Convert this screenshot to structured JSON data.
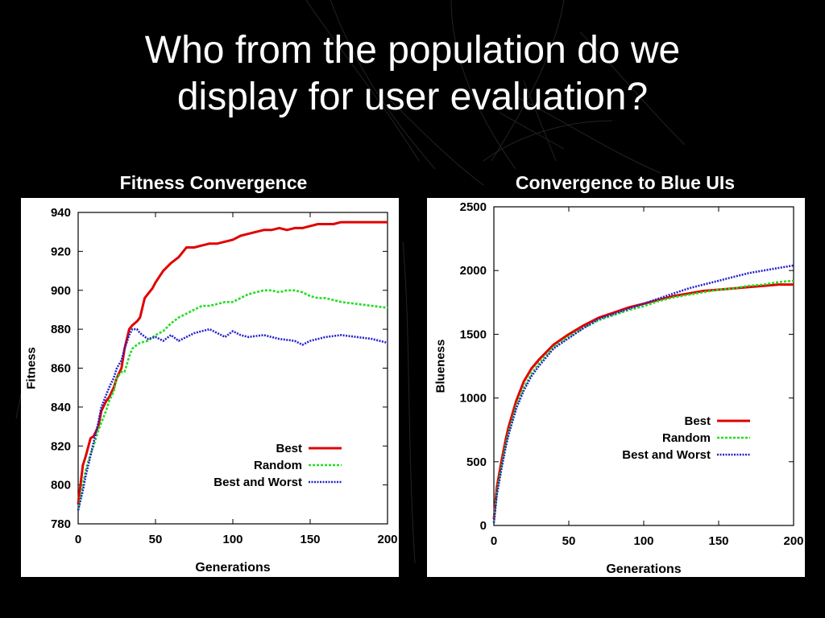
{
  "slide": {
    "title_line1": "Who from the population do we",
    "title_line2": "display for user evaluation?"
  },
  "colors": {
    "background": "#000000",
    "best": "#e00000",
    "random": "#22dd22",
    "best_and_worst": "#2222cc"
  },
  "chart_data": [
    {
      "type": "line",
      "heading": "Fitness Convergence",
      "xlabel": "Generations",
      "ylabel": "Fitness",
      "xlim": [
        0,
        200
      ],
      "ylim": [
        780,
        940
      ],
      "xticks": [
        0,
        50,
        100,
        150,
        200
      ],
      "yticks": [
        780,
        800,
        820,
        840,
        860,
        880,
        900,
        920,
        940
      ],
      "grid": false,
      "legend_position": "bottom-right",
      "series": [
        {
          "name": "Best",
          "style": "solid",
          "color": "#e00000",
          "x": [
            0,
            3,
            5,
            8,
            10,
            13,
            15,
            18,
            20,
            23,
            25,
            28,
            30,
            33,
            35,
            38,
            40,
            43,
            45,
            48,
            50,
            55,
            60,
            65,
            70,
            75,
            80,
            85,
            90,
            95,
            100,
            105,
            110,
            115,
            120,
            125,
            130,
            135,
            140,
            145,
            150,
            155,
            160,
            165,
            170,
            180,
            190,
            200
          ],
          "y": [
            790,
            810,
            815,
            824,
            825,
            830,
            838,
            843,
            845,
            850,
            855,
            860,
            870,
            880,
            882,
            884,
            886,
            896,
            898,
            901,
            904,
            910,
            914,
            917,
            922,
            922,
            923,
            924,
            924,
            925,
            926,
            928,
            929,
            930,
            931,
            931,
            932,
            931,
            932,
            932,
            933,
            934,
            934,
            934,
            935,
            935,
            935,
            935
          ]
        },
        {
          "name": "Random",
          "style": "dashed",
          "color": "#22dd22",
          "x": [
            0,
            3,
            5,
            8,
            10,
            13,
            15,
            18,
            20,
            23,
            25,
            28,
            30,
            33,
            35,
            38,
            40,
            45,
            50,
            55,
            60,
            65,
            70,
            75,
            80,
            85,
            90,
            95,
            100,
            105,
            110,
            115,
            120,
            125,
            130,
            135,
            140,
            145,
            150,
            155,
            160,
            170,
            180,
            190,
            200
          ],
          "y": [
            787,
            800,
            808,
            816,
            820,
            828,
            832,
            838,
            843,
            848,
            855,
            858,
            858,
            866,
            870,
            872,
            873,
            874,
            877,
            879,
            883,
            886,
            888,
            890,
            892,
            892,
            893,
            894,
            894,
            896,
            898,
            899,
            900,
            900,
            899,
            900,
            900,
            899,
            897,
            896,
            896,
            894,
            893,
            892,
            891
          ]
        },
        {
          "name": "Best and Worst",
          "style": "dotted",
          "color": "#2222cc",
          "x": [
            0,
            3,
            5,
            8,
            10,
            13,
            15,
            18,
            20,
            23,
            25,
            28,
            30,
            33,
            35,
            38,
            40,
            45,
            50,
            55,
            60,
            65,
            70,
            75,
            80,
            85,
            90,
            95,
            100,
            105,
            110,
            120,
            130,
            140,
            145,
            150,
            155,
            160,
            170,
            180,
            190,
            200
          ],
          "y": [
            787,
            797,
            805,
            815,
            822,
            832,
            840,
            846,
            850,
            855,
            860,
            864,
            870,
            877,
            880,
            880,
            878,
            875,
            876,
            874,
            877,
            874,
            876,
            878,
            879,
            880,
            878,
            876,
            879,
            877,
            876,
            877,
            875,
            874,
            872,
            874,
            875,
            876,
            877,
            876,
            875,
            873
          ]
        }
      ]
    },
    {
      "type": "line",
      "heading": "Convergence to Blue UIs",
      "xlabel": "Generations",
      "ylabel": "Blueness",
      "xlim": [
        0,
        200
      ],
      "ylim": [
        0,
        2500
      ],
      "xticks": [
        0,
        50,
        100,
        150,
        200
      ],
      "yticks": [
        0,
        500,
        1000,
        1500,
        2000,
        2500
      ],
      "grid": false,
      "legend_position": "middle-right",
      "series": [
        {
          "name": "Best",
          "style": "solid",
          "color": "#e00000",
          "x": [
            0,
            2,
            5,
            8,
            10,
            15,
            20,
            25,
            30,
            40,
            50,
            60,
            70,
            80,
            90,
            100,
            110,
            120,
            130,
            140,
            150,
            160,
            170,
            180,
            190,
            200
          ],
          "y": [
            50,
            300,
            500,
            680,
            780,
            980,
            1130,
            1230,
            1300,
            1420,
            1500,
            1570,
            1630,
            1670,
            1710,
            1740,
            1770,
            1800,
            1820,
            1840,
            1850,
            1860,
            1870,
            1880,
            1890,
            1890
          ]
        },
        {
          "name": "Random",
          "style": "dashed",
          "color": "#22dd22",
          "x": [
            0,
            2,
            5,
            8,
            10,
            15,
            20,
            25,
            30,
            40,
            50,
            60,
            70,
            80,
            90,
            100,
            110,
            120,
            130,
            140,
            150,
            160,
            170,
            180,
            190,
            200
          ],
          "y": [
            30,
            260,
            460,
            640,
            740,
            940,
            1080,
            1190,
            1270,
            1400,
            1480,
            1550,
            1610,
            1650,
            1690,
            1720,
            1760,
            1790,
            1810,
            1830,
            1850,
            1860,
            1880,
            1890,
            1910,
            1920
          ]
        },
        {
          "name": "Best and Worst",
          "style": "dotted",
          "color": "#2222cc",
          "x": [
            0,
            2,
            5,
            8,
            10,
            15,
            20,
            25,
            30,
            40,
            50,
            60,
            70,
            80,
            90,
            100,
            110,
            120,
            130,
            140,
            150,
            160,
            170,
            180,
            190,
            200
          ],
          "y": [
            20,
            240,
            440,
            620,
            720,
            920,
            1060,
            1170,
            1250,
            1390,
            1470,
            1550,
            1620,
            1660,
            1700,
            1740,
            1780,
            1820,
            1860,
            1890,
            1920,
            1950,
            1980,
            2000,
            2020,
            2040
          ]
        }
      ]
    }
  ]
}
